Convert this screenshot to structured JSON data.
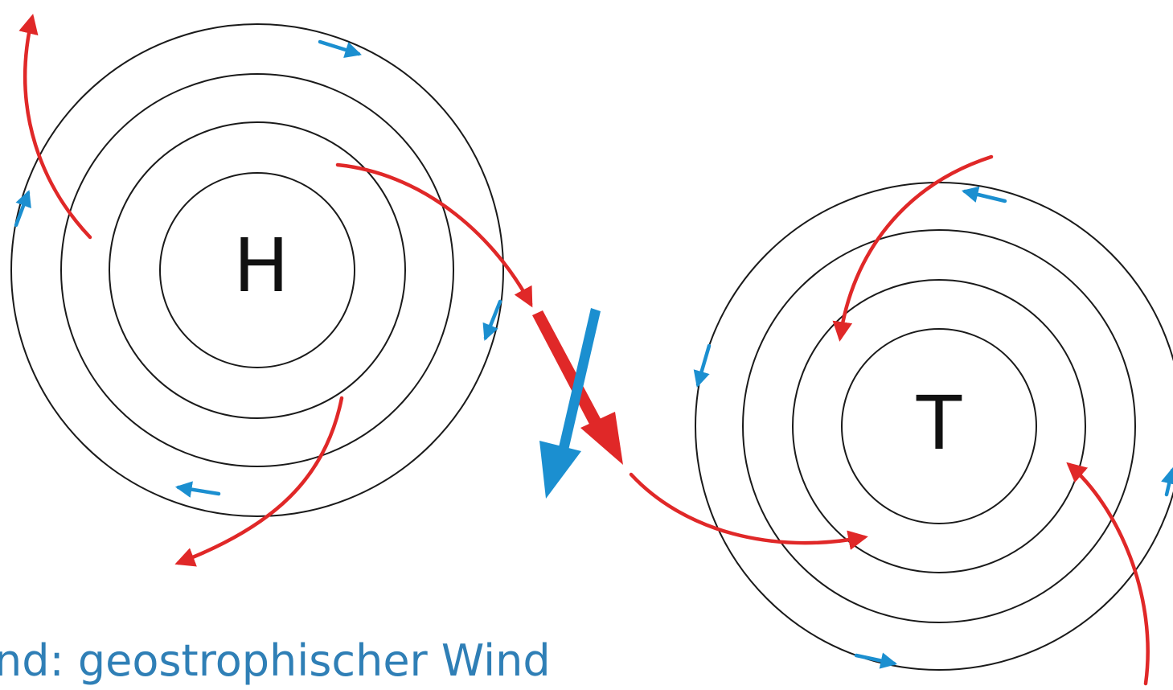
{
  "diagram": {
    "high_label": "H",
    "low_label": "T",
    "caption": "ind: geostrophischer Wind",
    "colors": {
      "isobar": "#1a1a1a",
      "surface_wind": "#e02828",
      "geostrophic_wind": "#1b8fd0",
      "caption": "#2f7fb6"
    }
  }
}
